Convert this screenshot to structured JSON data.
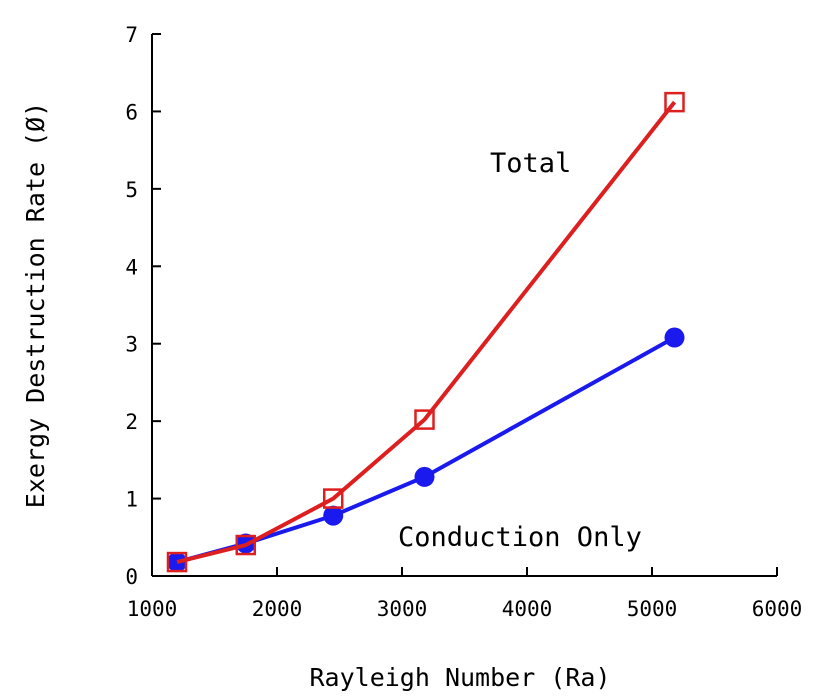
{
  "chart_data": {
    "type": "line",
    "title": "",
    "xlabel": "Rayleigh Number (Ra)",
    "ylabel": "Exergy Destruction Rate (Ø)",
    "xlim": [
      1000,
      6000
    ],
    "ylim": [
      0,
      7
    ],
    "xticks": [
      1000,
      2000,
      3000,
      4000,
      5000,
      6000
    ],
    "yticks": [
      0,
      1,
      2,
      3,
      4,
      5,
      6,
      7
    ],
    "xtick_labels": [
      "1000",
      "2000",
      "3000",
      "4000",
      "5000",
      "6000"
    ],
    "ytick_labels": [
      "0",
      "1",
      "2",
      "3",
      "4",
      "5",
      "6",
      "7"
    ],
    "grid": false,
    "legend": "none",
    "series": [
      {
        "name": "Total",
        "color": "#dd1f1f",
        "marker": "open-square",
        "x": [
          1200,
          1750,
          2450,
          3180,
          5180
        ],
        "y": [
          0.18,
          0.4,
          1.0,
          2.02,
          6.12
        ]
      },
      {
        "name": "Conduction Only",
        "color": "#1a1aee",
        "marker": "filled-circle",
        "x": [
          1200,
          1750,
          2450,
          3180,
          5180
        ],
        "y": [
          0.18,
          0.42,
          0.78,
          1.28,
          3.08
        ]
      }
    ],
    "annotations": [
      "Total",
      "Conduction Only"
    ]
  }
}
